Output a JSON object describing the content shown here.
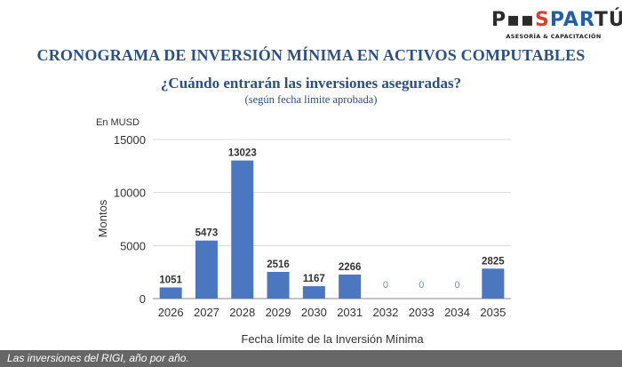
{
  "logo": {
    "parts": [
      {
        "text": "P",
        "color": "#2b2b2b"
      },
      {
        "text": "▪▪",
        "color": "#2b2b2b"
      },
      {
        "text": "S",
        "color": "#e03c31"
      },
      {
        "text": "PAR",
        "color": "#1f5fa8"
      },
      {
        "text": "TÚ",
        "color": "#2b2b2b"
      }
    ],
    "tagline": "ASESORÍA & CAPACITACIÓN"
  },
  "title": "CRONOGRAMA DE INVERSIÓN MÍNIMA EN ACTIVOS COMPUTABLES",
  "subtitle": "¿Cuándo entrarán las inversiones aseguradas?",
  "subsubtitle": "(según fecha limite aprobada)",
  "caption": "Las inversiones del RIGI, año por año.",
  "colors": {
    "bar": "#4a77c0",
    "title": "#2b4f86",
    "zero_label": "#6f8fc9"
  },
  "chart_data": {
    "type": "bar",
    "unit_label": "En MUSD",
    "ylabel": "Montos",
    "xlabel": "Fecha límite de la Inversión Mínima",
    "ylim": [
      0,
      15000
    ],
    "yticks": [
      0,
      5000,
      10000,
      15000
    ],
    "grid": true,
    "categories": [
      "2026",
      "2027",
      "2028",
      "2029",
      "2030",
      "2031",
      "2032",
      "2033",
      "2034",
      "2035"
    ],
    "values": [
      1051,
      5473,
      13023,
      2516,
      1167,
      2266,
      0,
      0,
      0,
      2825
    ]
  }
}
